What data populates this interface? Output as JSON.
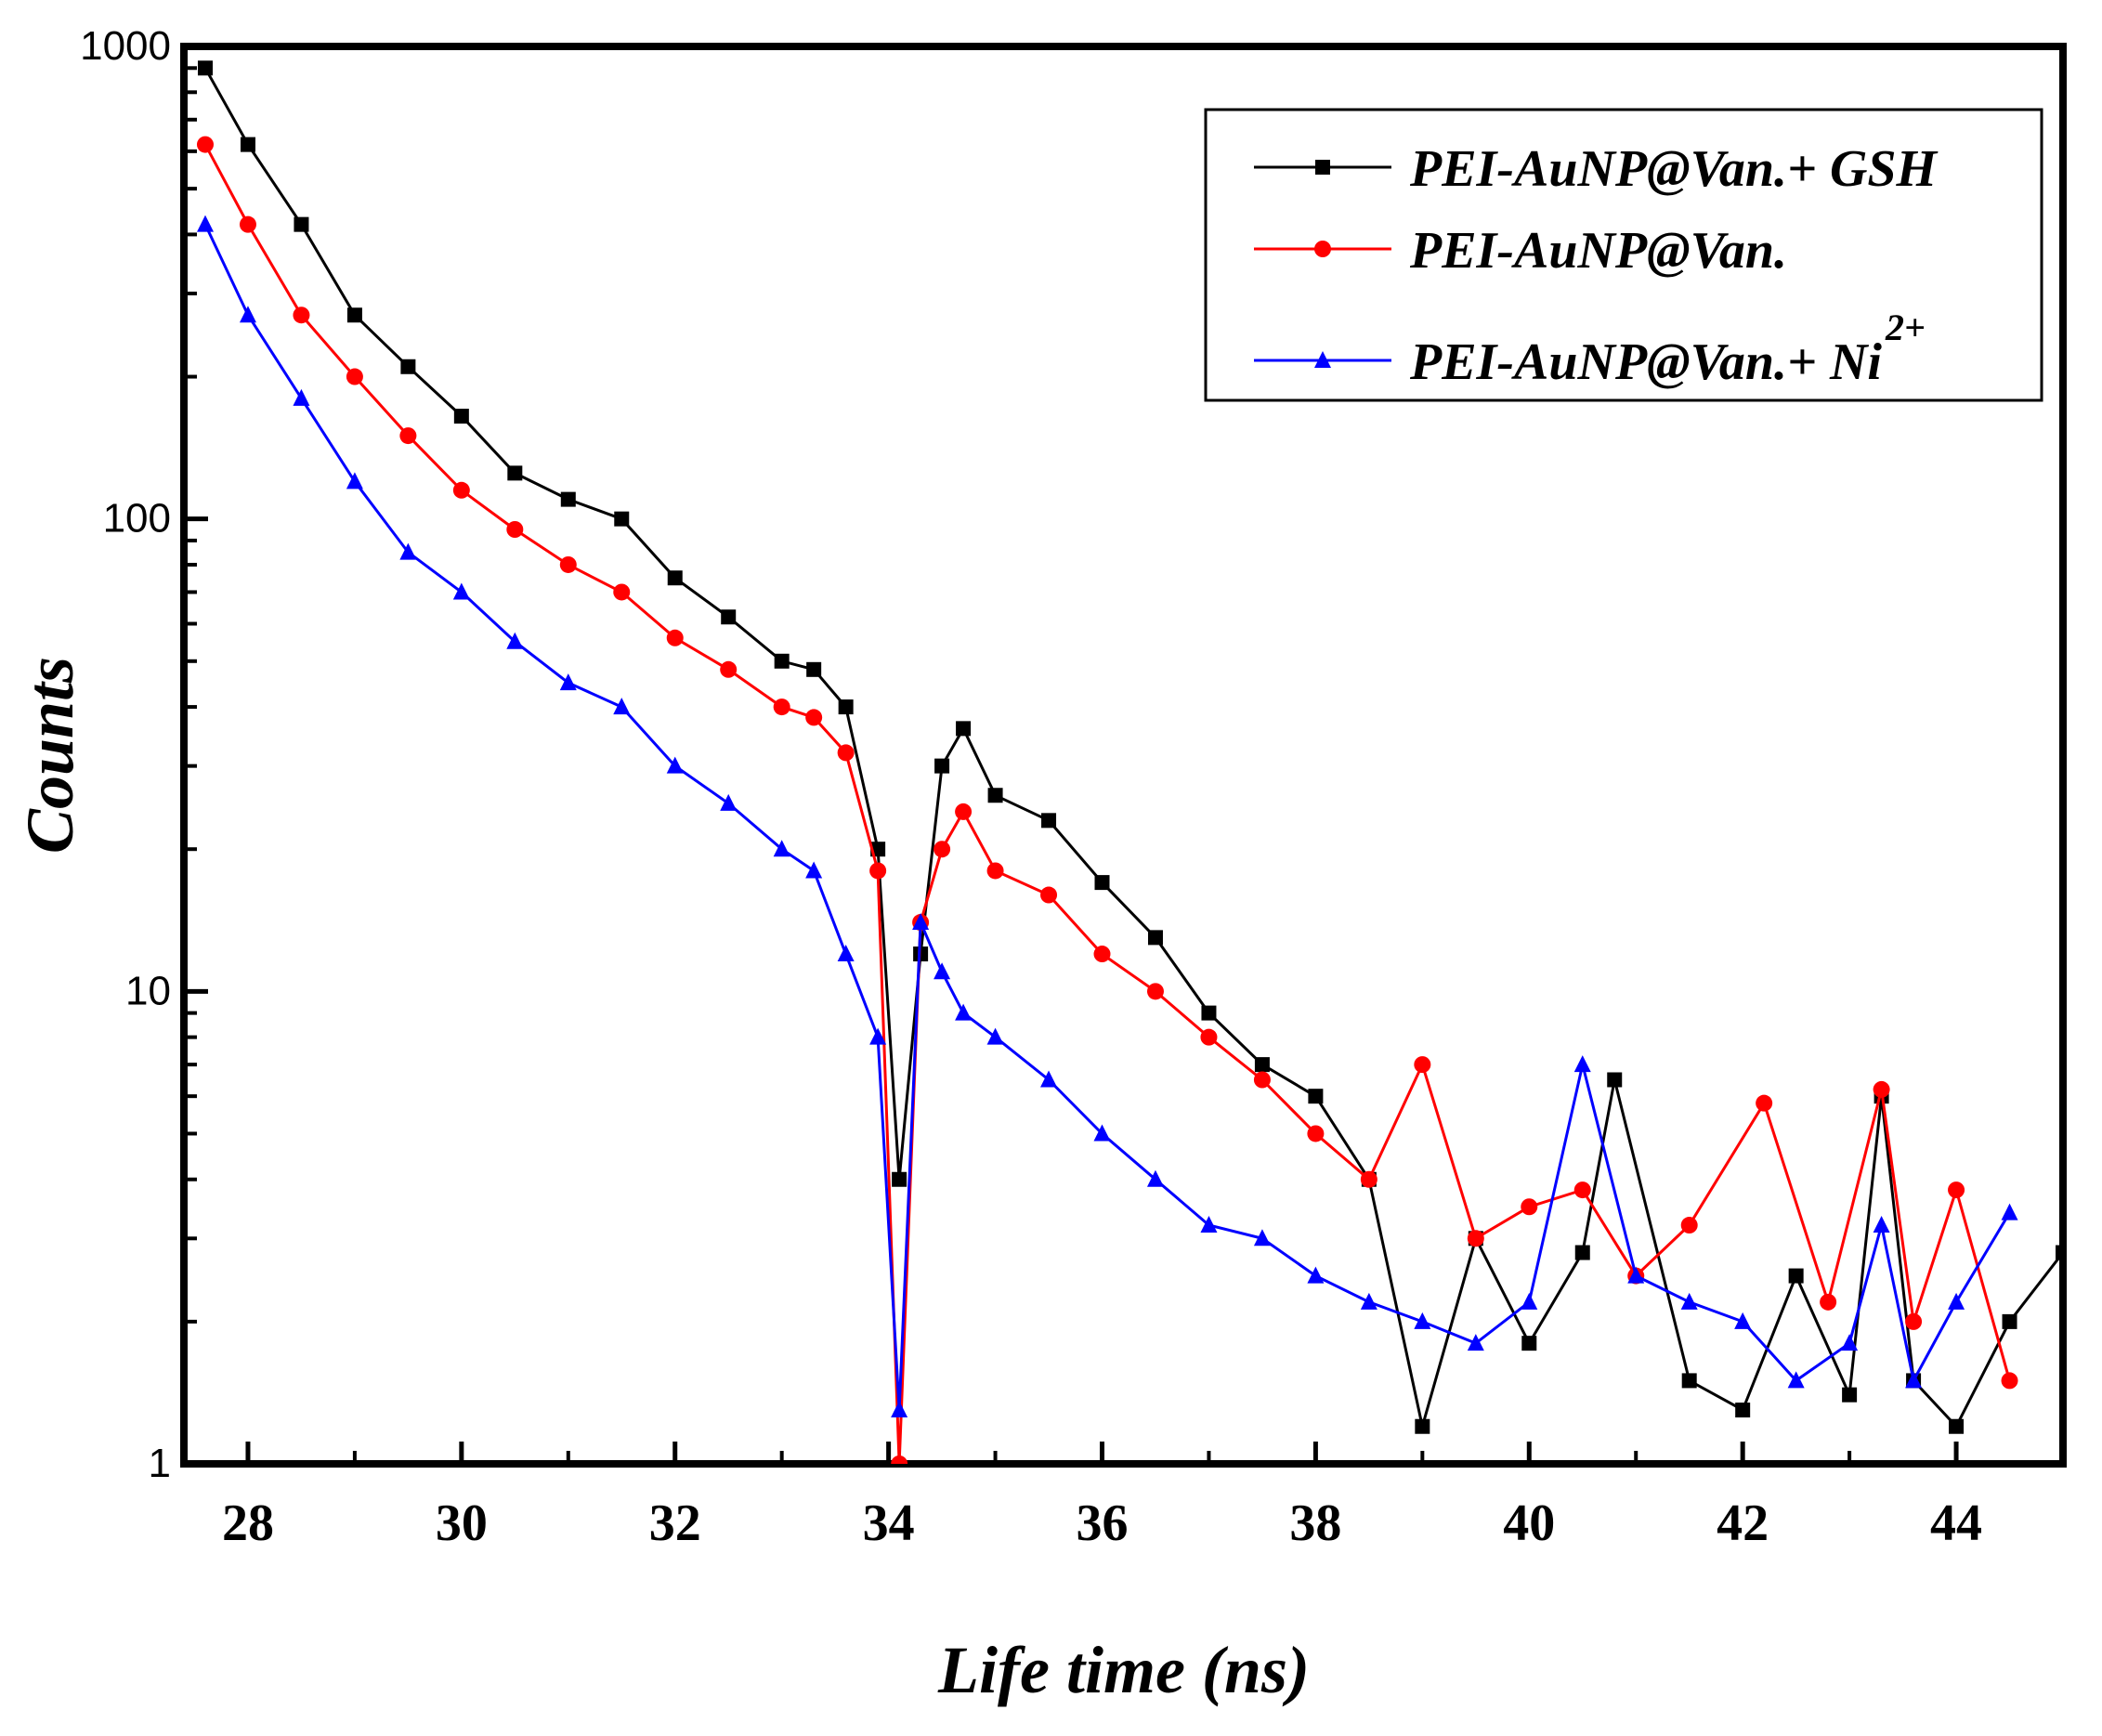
{
  "chart_data": {
    "type": "line",
    "title": "",
    "xlabel": "Life time (ns)",
    "ylabel": "Counts",
    "xlim": [
      27.4,
      45.0
    ],
    "ylim": [
      1,
      1000
    ],
    "yscale": "log",
    "xticks": [
      28,
      30,
      32,
      34,
      36,
      38,
      40,
      42,
      44
    ],
    "xtick_labels": [
      "28",
      "30",
      "32",
      "34",
      "36",
      "38",
      "40",
      "42",
      "44"
    ],
    "yticks": [
      1,
      10,
      100,
      1000
    ],
    "ytick_labels": [
      "1",
      "10",
      "100",
      "1000"
    ],
    "legend_position": "top-right",
    "grid": false,
    "series": [
      {
        "name": "PEI-AuNP@Van.+ GSH",
        "name_text": "PEI-AuNP@Van.+ GSH",
        "name_sup": "",
        "color": "#000000",
        "marker": "square",
        "x": [
          27.6,
          28.0,
          28.5,
          29.0,
          29.5,
          30.0,
          30.5,
          31.0,
          31.5,
          32.0,
          32.5,
          33.0,
          33.3,
          33.6,
          33.9,
          34.1,
          34.3,
          34.5,
          34.7,
          35.0,
          35.5,
          36.0,
          36.5,
          37.0,
          37.5,
          38.0,
          38.5,
          39.0,
          39.5,
          40.0,
          40.5,
          40.8,
          41.5,
          42.0,
          42.5,
          43.0,
          43.3,
          43.6,
          44.0,
          44.5,
          45.0
        ],
        "y": [
          900,
          620,
          420,
          270,
          210,
          165,
          125,
          110,
          100,
          75,
          62,
          50,
          48,
          40,
          20,
          4.0,
          12,
          30,
          36,
          26,
          23,
          17,
          13,
          9,
          7,
          6,
          4,
          1.2,
          3,
          1.8,
          2.8,
          6.5,
          1.5,
          1.3,
          2.5,
          1.4,
          6.0,
          1.5,
          1.2,
          2.0,
          2.8
        ]
      },
      {
        "name": "PEI-AuNP@Van.",
        "name_text": "PEI-AuNP@Van.",
        "name_sup": "",
        "color": "#ff0000",
        "marker": "circle",
        "x": [
          27.6,
          28.0,
          28.5,
          29.0,
          29.5,
          30.0,
          30.5,
          31.0,
          31.5,
          32.0,
          32.5,
          33.0,
          33.3,
          33.6,
          33.9,
          34.1,
          34.3,
          34.5,
          34.7,
          35.0,
          35.5,
          36.0,
          36.5,
          37.0,
          37.5,
          38.0,
          38.5,
          39.0,
          39.5,
          40.0,
          40.5,
          41.0,
          41.5,
          42.2,
          42.8,
          43.3,
          43.6,
          44.0,
          44.5
        ],
        "y": [
          620,
          420,
          270,
          200,
          150,
          115,
          95,
          80,
          70,
          56,
          48,
          40,
          38,
          32,
          18,
          1.0,
          14,
          20,
          24,
          18,
          16,
          12,
          10,
          8,
          6.5,
          5,
          4,
          7,
          3,
          3.5,
          3.8,
          2.5,
          3.2,
          5.8,
          2.2,
          6.2,
          2.0,
          3.8,
          1.5
        ]
      },
      {
        "name": "PEI-AuNP@Van.+ Ni2+",
        "name_text": "PEI-AuNP@Van.+ Ni",
        "name_sup": "2+",
        "color": "#0000ff",
        "marker": "triangle",
        "x": [
          27.6,
          28.0,
          28.5,
          29.0,
          29.5,
          30.0,
          30.5,
          31.0,
          31.5,
          32.0,
          32.5,
          33.0,
          33.3,
          33.6,
          33.9,
          34.1,
          34.3,
          34.5,
          34.7,
          35.0,
          35.5,
          36.0,
          36.5,
          37.0,
          37.5,
          38.0,
          38.5,
          39.0,
          39.5,
          40.0,
          40.5,
          41.0,
          41.5,
          42.0,
          42.5,
          43.0,
          43.3,
          43.6,
          44.0,
          44.5
        ],
        "y": [
          420,
          270,
          180,
          120,
          85,
          70,
          55,
          45,
          40,
          30,
          25,
          20,
          18,
          12,
          8,
          1.3,
          14,
          11,
          9,
          8,
          6.5,
          5,
          4,
          3.2,
          3,
          2.5,
          2.2,
          2,
          1.8,
          2.2,
          7.0,
          2.5,
          2.2,
          2.0,
          1.5,
          1.8,
          3.2,
          1.5,
          2.2,
          3.4
        ]
      }
    ]
  }
}
